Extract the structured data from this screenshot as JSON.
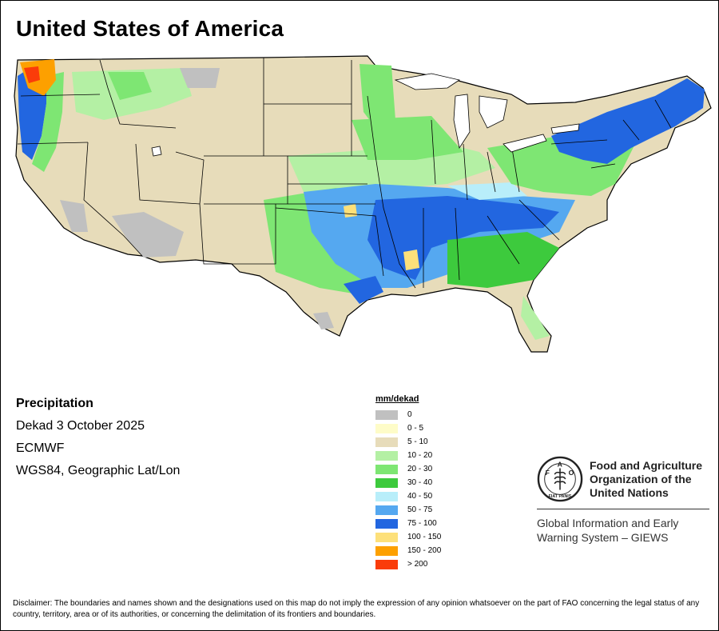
{
  "title": "United States of America",
  "info": {
    "variable": "Precipitation",
    "period": "Dekad 3 October 2025",
    "source": "ECMWF",
    "projection": "WGS84, Geographic Lat/Lon"
  },
  "legend": {
    "unit": "mm/dekad",
    "classes": [
      {
        "label": "0",
        "color": "#c0c0c0"
      },
      {
        "label": "0 - 5",
        "color": "#fefcc8"
      },
      {
        "label": "5 - 10",
        "color": "#e7dcba"
      },
      {
        "label": "10 - 20",
        "color": "#b4f0a4"
      },
      {
        "label": "20 - 30",
        "color": "#7ee673"
      },
      {
        "label": "30 - 40",
        "color": "#3dca3d"
      },
      {
        "label": "40 - 50",
        "color": "#b8eefa"
      },
      {
        "label": "50 - 75",
        "color": "#55a8f0"
      },
      {
        "label": "75 - 100",
        "color": "#2266e0"
      },
      {
        "label": "100 - 150",
        "color": "#fde07a"
      },
      {
        "label": "150 - 200",
        "color": "#fda000"
      },
      {
        "label": "> 200",
        "color": "#fa3c0a"
      }
    ]
  },
  "organization": {
    "name_lines": [
      "Food and Agriculture",
      "Organization of the",
      "United Nations"
    ],
    "logo_text": {
      "left": "F",
      "center": "A",
      "right": "O",
      "motto": "FIAT PANIS"
    },
    "system_lines": [
      "Global Information and Early",
      "Warning System – GIEWS"
    ]
  },
  "disclaimer": "Disclaimer: The boundaries and names shown and the designations used on this map do not imply the expression of any opinion whatsoever on the part of FAO concerning the legal status of any country, territory, area or of its authorities, or concerning the delimitation of its frontiers and boundaries."
}
